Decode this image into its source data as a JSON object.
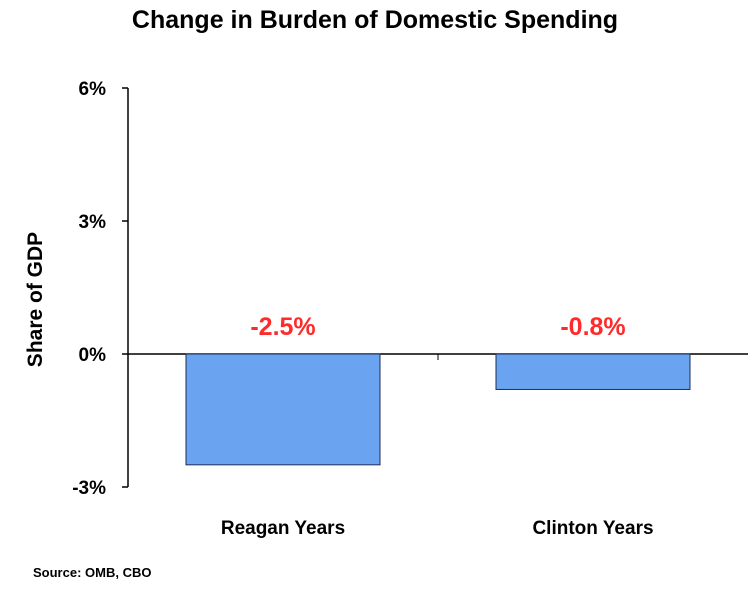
{
  "chart_data": {
    "type": "bar",
    "title": "Change in Burden of Domestic Spending",
    "categories": [
      "Reagan Years",
      "Clinton Years"
    ],
    "values": [
      -2.5,
      -0.8
    ],
    "data_labels": [
      "-2.5%",
      "-0.8%"
    ],
    "xlabel": "",
    "ylabel": "Share of GDP",
    "ylim": [
      -3,
      6
    ],
    "yticks": [
      6,
      3,
      0,
      -3
    ],
    "ytick_labels": [
      "6%",
      "3%",
      "0%",
      "-3%"
    ],
    "grid": false,
    "legend": "none",
    "bar_color": "#6aa3ef",
    "bar_edge_color": "#1f2d55",
    "data_label_color": "#ff2a2a"
  },
  "source": "Source: OMB, CBO"
}
